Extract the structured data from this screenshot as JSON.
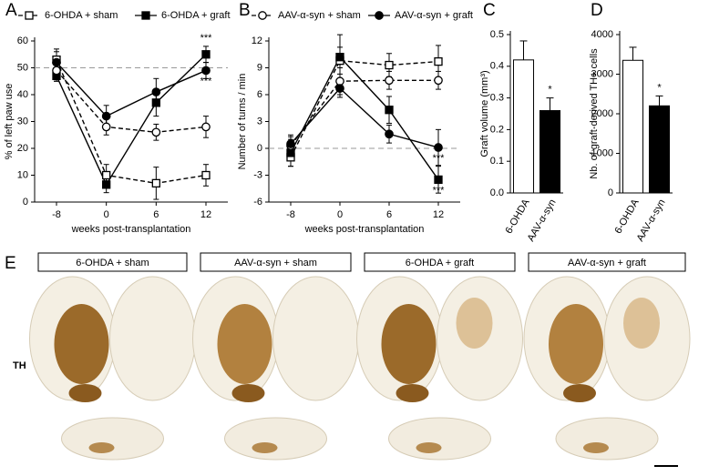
{
  "chart_data": [
    {
      "type": "line",
      "panel": "A",
      "y_label": "% of left paw use",
      "x_label": "weeks post-transplantation",
      "categories": [
        "-8",
        "0",
        "6",
        "12"
      ],
      "ylim": [
        0,
        60
      ],
      "yticks": [
        0,
        10,
        20,
        30,
        40,
        50,
        60
      ],
      "refline": 50,
      "legend": "top",
      "series": [
        {
          "name": "6-OHDA + sham",
          "color": "#000000",
          "marker": "square",
          "filled": false,
          "dashed": true,
          "values": [
            53,
            10,
            7,
            10
          ],
          "errors": [
            3,
            4,
            6,
            4
          ],
          "significance": [
            null,
            null,
            null,
            null
          ]
        },
        {
          "name": "6-OHDA + graft",
          "color": "#000000",
          "marker": "square",
          "filled": true,
          "dashed": false,
          "values": [
            47,
            6.5,
            37,
            55
          ],
          "errors": [
            2,
            3,
            5,
            3
          ],
          "significance": [
            null,
            null,
            null,
            "***"
          ]
        },
        {
          "name": "AAV-α-syn + sham",
          "color": "#000000",
          "marker": "circle",
          "filled": false,
          "dashed": true,
          "values": [
            49,
            28,
            26,
            28
          ],
          "errors": [
            4,
            3,
            3,
            4
          ],
          "significance": [
            null,
            null,
            null,
            null
          ]
        },
        {
          "name": "AAV-α-syn + graft",
          "color": "#000000",
          "marker": "circle",
          "filled": true,
          "dashed": false,
          "values": [
            52,
            32,
            41,
            49
          ],
          "errors": [
            5,
            4,
            5,
            3
          ],
          "significance": [
            null,
            null,
            null,
            "***"
          ]
        }
      ]
    },
    {
      "type": "line",
      "panel": "B",
      "y_label": "Number of turns / min",
      "x_label": "weeks post-transplantation",
      "categories": [
        "-8",
        "0",
        "6",
        "12"
      ],
      "ylim": [
        -6,
        12
      ],
      "yticks": [
        -6,
        -3,
        0,
        3,
        6,
        9,
        12
      ],
      "refline": 0,
      "series": [
        {
          "color": "#000000",
          "marker": "square",
          "filled": false,
          "dashed": true,
          "values": [
            -1,
            9.8,
            9.3,
            9.7
          ],
          "errors": [
            1,
            1.5,
            1.3,
            1.8
          ],
          "significance": [
            null,
            null,
            null,
            null
          ]
        },
        {
          "color": "#000000",
          "marker": "square",
          "filled": true,
          "dashed": false,
          "values": [
            -0.5,
            10.2,
            4.3,
            -3.5
          ],
          "errors": [
            1.5,
            2.5,
            1.5,
            1.5
          ],
          "significance": [
            null,
            null,
            null,
            "***"
          ]
        },
        {
          "color": "#000000",
          "marker": "circle",
          "filled": false,
          "dashed": true,
          "values": [
            0.3,
            7.5,
            7.6,
            7.6
          ],
          "errors": [
            1,
            1.5,
            1,
            1
          ],
          "significance": [
            null,
            null,
            null,
            null
          ]
        },
        {
          "color": "#000000",
          "marker": "circle",
          "filled": true,
          "dashed": false,
          "values": [
            0.5,
            6.7,
            1.6,
            0.1
          ],
          "errors": [
            1,
            1,
            1,
            2
          ],
          "significance": [
            null,
            null,
            null,
            "***"
          ]
        }
      ]
    },
    {
      "type": "bar",
      "panel": "C",
      "y_label": "Graft volume (mm³)",
      "categories": [
        "6-OHDA",
        "AAV-α-syn"
      ],
      "values": [
        0.42,
        0.26
      ],
      "errors": [
        0.06,
        0.04
      ],
      "colors": [
        "#ffffff",
        "#000000"
      ],
      "significance": [
        null,
        "*"
      ],
      "ylim": [
        0,
        0.5
      ],
      "yticks": [
        {
          "value": 0,
          "label": "0.0"
        },
        0.1,
        0.2,
        0.3,
        0.4,
        0.5
      ]
    },
    {
      "type": "bar",
      "panel": "D",
      "y_label": "Nb. of graft-derived TH+ cells",
      "categories": [
        "6-OHDA",
        "AAV-α-syn"
      ],
      "values": [
        3350,
        2200
      ],
      "errors": [
        330,
        250
      ],
      "colors": [
        "#ffffff",
        "#000000"
      ],
      "significance": [
        null,
        "*"
      ],
      "ylim": [
        0,
        4000
      ],
      "yticks": [
        0,
        1000,
        2000,
        3000,
        4000
      ]
    }
  ],
  "histology": {
    "panel": "E",
    "labels": [
      "6-OHDA + sham",
      "AAV-α-syn + sham",
      "6-OHDA + graft",
      "AAV-α-syn + graft"
    ],
    "stain": "TH"
  }
}
